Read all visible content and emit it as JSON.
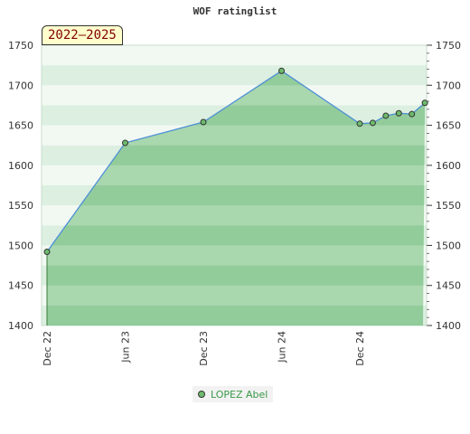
{
  "title": "WOF ratinglist",
  "period_label": "2022–2025",
  "legend_label": "LOPEZ Abel",
  "colors": {
    "line": "#4d8fd6",
    "area": "#4fae5a",
    "point_fill": "#6dbb6d",
    "point_stroke": "#333333"
  },
  "chart_data": {
    "type": "area",
    "title": "WOF ratinglist",
    "xlabel": "",
    "ylabel": "",
    "ylim": [
      1400,
      1750
    ],
    "yticks": [
      1400,
      1450,
      1500,
      1550,
      1600,
      1650,
      1700,
      1750
    ],
    "xticks": [
      "Dec 22",
      "Jun 23",
      "Dec 23",
      "Jun 24",
      "Dec 24"
    ],
    "grid": true,
    "legend_position": "bottom",
    "series": [
      {
        "name": "LOPEZ Abel",
        "x": [
          "2022-12",
          "2023-06",
          "2023-12",
          "2024-06",
          "2024-12",
          "2025-01",
          "2025-02",
          "2025-03",
          "2025-04",
          "2025-05"
        ],
        "values": [
          1492,
          1628,
          1654,
          1718,
          1652,
          1653,
          1662,
          1665,
          1664,
          1678
        ]
      }
    ]
  }
}
